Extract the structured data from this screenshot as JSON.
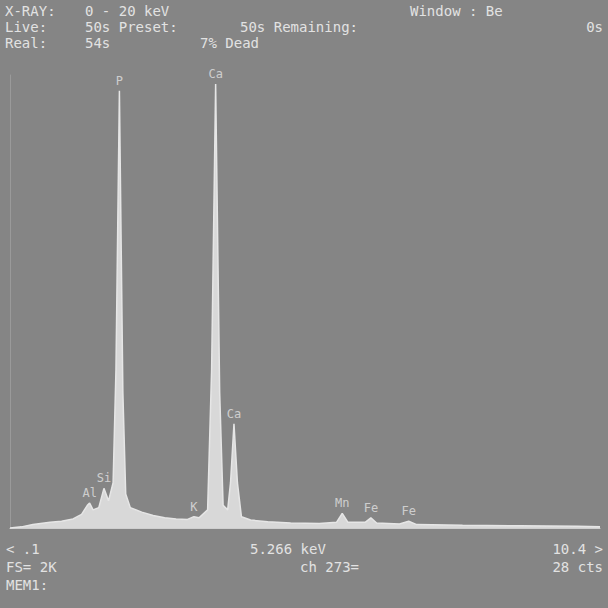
{
  "chart_data": {
    "type": "line",
    "header": [
      [
        "X-RAY:",
        "0 - 20 keV",
        "Window : Be"
      ],
      [
        "Live:",
        "50s Preset:",
        "50s Remaining:",
        "0s"
      ],
      [
        "Real:",
        "54s",
        "7% Dead"
      ]
    ],
    "footer": [
      [
        "< .1",
        "5.266 keV",
        "10.4 >"
      ],
      [
        "FS= 2K",
        "ch 273=",
        "28 cts"
      ],
      [
        "MEM1:"
      ]
    ],
    "x": [
      0.1,
      0.3,
      0.5,
      0.8,
      1.0,
      1.2,
      1.35,
      1.45,
      1.49,
      1.55,
      1.65,
      1.74,
      1.82,
      1.9,
      1.95,
      2.01,
      2.07,
      2.12,
      2.2,
      2.4,
      2.6,
      2.8,
      3.0,
      3.2,
      3.31,
      3.4,
      3.55,
      3.62,
      3.69,
      3.76,
      3.82,
      3.9,
      3.95,
      4.01,
      4.07,
      4.14,
      4.3,
      4.6,
      5.0,
      5.5,
      5.8,
      5.9,
      6.0,
      6.3,
      6.4,
      6.5,
      6.9,
      7.06,
      7.2,
      8.0,
      9.0,
      10.0,
      10.4
    ],
    "values": [
      0,
      5,
      15,
      25,
      30,
      40,
      60,
      100,
      110,
      80,
      90,
      175,
      120,
      200,
      700,
      1930,
      600,
      150,
      90,
      70,
      55,
      45,
      40,
      38,
      50,
      45,
      80,
      700,
      1960,
      600,
      100,
      80,
      200,
      460,
      200,
      50,
      35,
      28,
      22,
      20,
      25,
      65,
      25,
      25,
      45,
      22,
      18,
      30,
      15,
      12,
      10,
      8,
      6
    ],
    "peaks": [
      {
        "label": "Al",
        "energy": 1.49,
        "counts": 110
      },
      {
        "label": "Si",
        "energy": 1.74,
        "counts": 175
      },
      {
        "label": "P",
        "energy": 2.01,
        "counts": 1930
      },
      {
        "label": "K",
        "energy": 3.31,
        "counts": 50
      },
      {
        "label": "Ca",
        "energy": 3.69,
        "counts": 1960
      },
      {
        "label": "Ca",
        "energy": 4.01,
        "counts": 460
      },
      {
        "label": "Mn",
        "energy": 5.9,
        "counts": 65
      },
      {
        "label": "Fe",
        "energy": 6.4,
        "counts": 45
      },
      {
        "label": "Fe",
        "energy": 7.06,
        "counts": 30
      }
    ],
    "color": "#e6e6e6",
    "xlim": [
      0.1,
      10.4
    ],
    "ylim": [
      0,
      2000
    ],
    "tick_labels": false,
    "grid": false
  }
}
